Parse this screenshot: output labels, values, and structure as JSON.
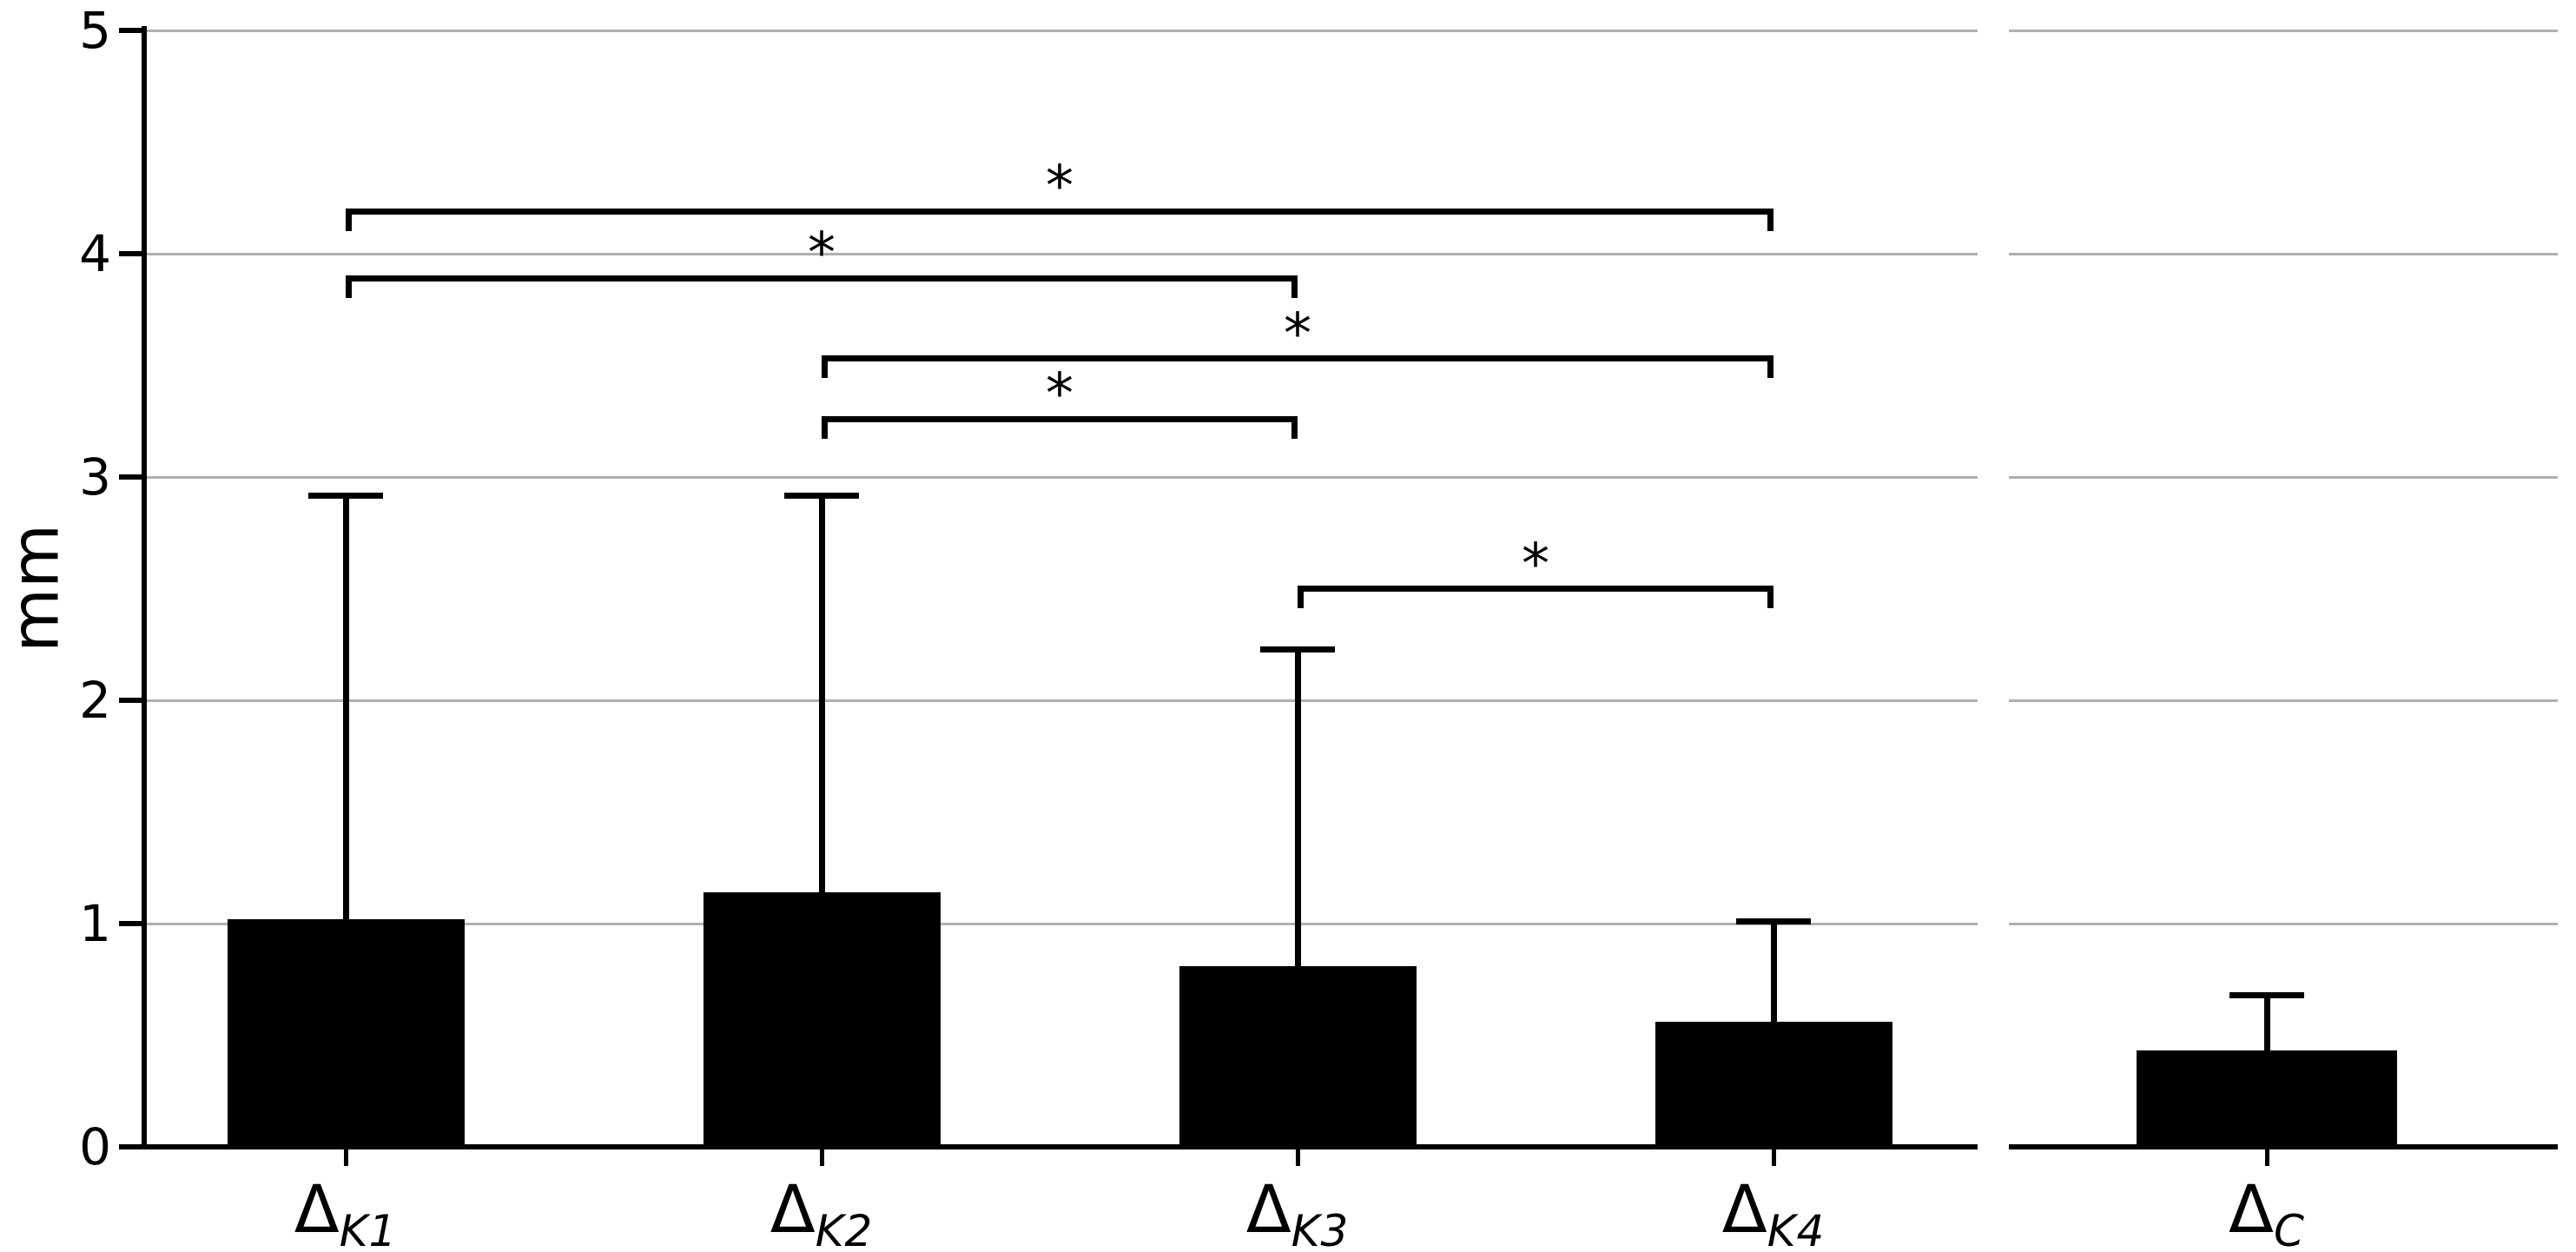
{
  "chart_data": {
    "type": "bar",
    "title": "",
    "ylabel": "mm",
    "ylim": [
      0,
      5
    ],
    "yticks": [
      0,
      1,
      2,
      3,
      4,
      5
    ],
    "ytick_labels": [
      "0",
      "1",
      "2",
      "3",
      "4",
      "5"
    ],
    "grid": "horizontal",
    "legend": "none",
    "categories": [
      "ΔK1",
      "ΔK2",
      "ΔK3",
      "ΔK4",
      "ΔC"
    ],
    "category_parts": [
      {
        "base": "Δ",
        "sub": "K1"
      },
      {
        "base": "Δ",
        "sub": "K2"
      },
      {
        "base": "Δ",
        "sub": "K3"
      },
      {
        "base": "Δ",
        "sub": "K4"
      },
      {
        "base": "Δ",
        "sub": "C"
      }
    ],
    "values": [
      1.02,
      1.14,
      0.81,
      0.56,
      0.43
    ],
    "error_bar_tops": [
      2.92,
      2.92,
      2.23,
      1.01,
      0.68
    ],
    "significance_brackets": [
      {
        "from": "ΔK1",
        "to": "ΔK4",
        "y": 4.19,
        "label": "*"
      },
      {
        "from": "ΔK1",
        "to": "ΔK3",
        "y": 3.89,
        "label": "*"
      },
      {
        "from": "ΔK2",
        "to": "ΔK4",
        "y": 3.53,
        "label": "*"
      },
      {
        "from": "ΔK2",
        "to": "ΔK3",
        "y": 3.26,
        "label": "*"
      },
      {
        "from": "ΔK3",
        "to": "ΔK4",
        "y": 2.5,
        "label": "*"
      }
    ],
    "axis_break_between": [
      "ΔK4",
      "ΔC"
    ],
    "colors": {
      "bar": "#000000",
      "axis": "#000000",
      "gridline": "#b0b0b0",
      "background": "#ffffff"
    }
  }
}
